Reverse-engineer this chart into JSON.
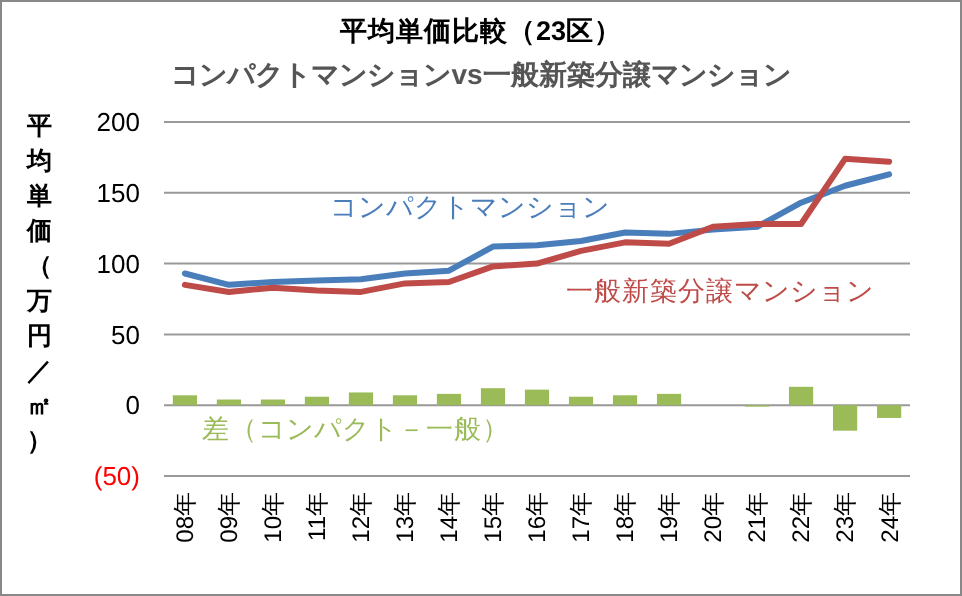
{
  "chart_data": {
    "type": "line",
    "title": "平均単価比較（23区）",
    "subtitle": "コンパクトマンションvs一般新築分譲マンション",
    "ylabel": "平均単価（万円／㎡）",
    "categories": [
      "08年",
      "09年",
      "10年",
      "11年",
      "12年",
      "13年",
      "14年",
      "15年",
      "16年",
      "17年",
      "18年",
      "19年",
      "20年",
      "21年",
      "22年",
      "23年",
      "24年"
    ],
    "series": [
      {
        "name": "コンパクトマンション",
        "color": "#4a7ebb",
        "values": [
          93,
          85,
          87,
          88,
          89,
          93,
          95,
          112,
          113,
          116,
          122,
          121,
          124,
          126,
          143,
          155,
          163
        ]
      },
      {
        "name": "一般新築分譲マンション",
        "color": "#be4b48",
        "values": [
          85,
          80,
          83,
          81,
          80,
          86,
          87,
          98,
          100,
          109,
          115,
          114,
          126,
          128,
          128,
          174,
          172
        ]
      },
      {
        "name": "差（コンパクト－一般）",
        "type": "bar",
        "color": "#9bbb59",
        "values": [
          7,
          4,
          4,
          6,
          9,
          7,
          8,
          12,
          11,
          6,
          7,
          8,
          0,
          -1,
          13,
          -18,
          -9
        ]
      }
    ],
    "ylim": [
      -50,
      200
    ],
    "yticks": [
      {
        "value": -50,
        "label": "(50)"
      },
      0,
      50,
      100,
      150,
      200
    ],
    "grid": "y",
    "legend": false
  }
}
